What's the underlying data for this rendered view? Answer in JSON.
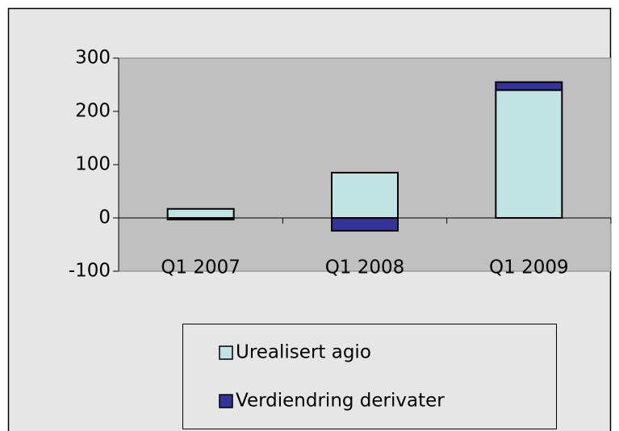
{
  "chart_data": {
    "type": "bar",
    "stacked": true,
    "categories": [
      "Q1 2007",
      "Q1 2008",
      "Q1 2009"
    ],
    "series": [
      {
        "name": "Urealisert agio",
        "color": "#c0e4e4",
        "values": [
          17,
          85,
          240
        ]
      },
      {
        "name": "Verdiendring derivater",
        "color": "#333399",
        "values": [
          -3,
          -24,
          15
        ]
      }
    ],
    "ylim": [
      -100,
      300
    ],
    "yticks": [
      -100,
      0,
      100,
      200,
      300
    ],
    "grid": false
  }
}
